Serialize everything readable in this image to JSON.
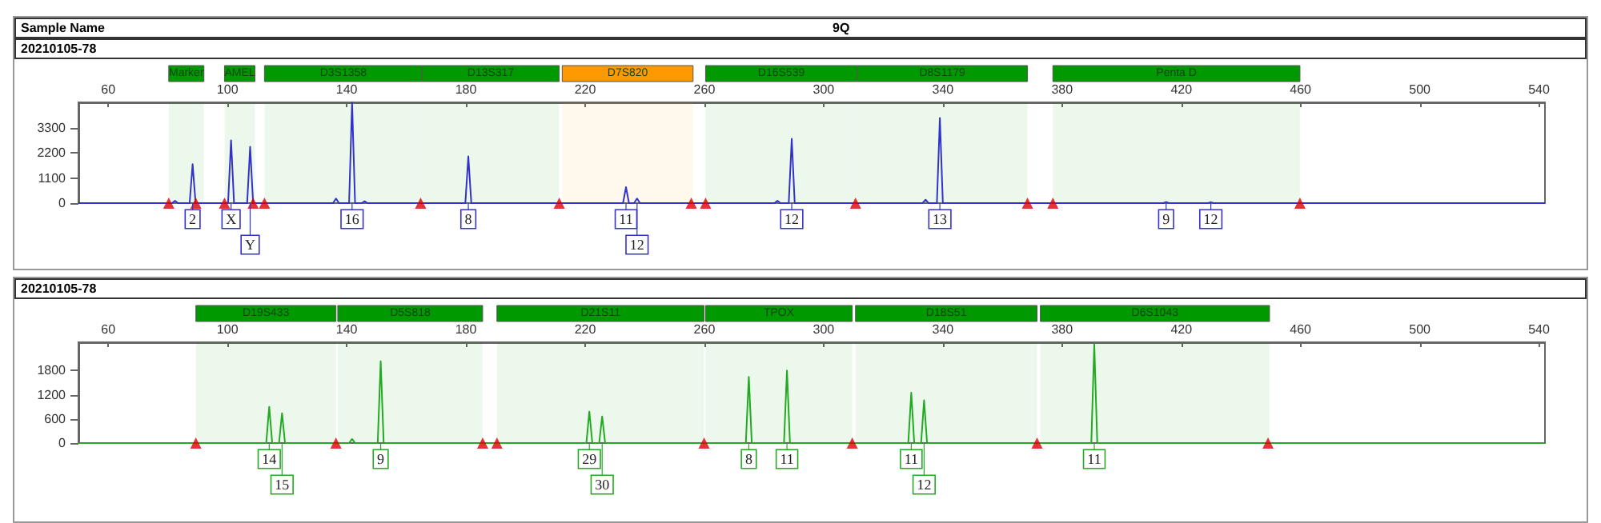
{
  "chart_data": [
    {
      "type": "line",
      "annotations": [
        "Sample Name",
        "9Q",
        "20210105-78",
        {
          "text": "2",
          "x": 88.3,
          "y": 0
        },
        {
          "text": "X",
          "x": 101.2,
          "y": 0
        },
        {
          "text": "Y",
          "x": 107.6,
          "y": 0
        },
        {
          "text": "16",
          "x": 141.8,
          "y": 0
        },
        {
          "text": "8",
          "x": 180.8,
          "y": 0
        },
        {
          "text": "11",
          "x": 233.7,
          "y": 0
        },
        {
          "text": "12",
          "x": 237.4,
          "y": 0
        },
        {
          "text": "12",
          "x": 289.3,
          "y": 0
        },
        {
          "text": "13",
          "x": 339,
          "y": 0
        },
        {
          "text": "9",
          "x": 414.9,
          "y": 0
        },
        {
          "text": "12",
          "x": 429.9,
          "y": 0
        }
      ],
      "x": [
        50,
        81.4,
        82.4,
        83.4,
        87.3,
        88.3,
        89.3,
        100.2,
        101.2,
        102.2,
        106.6,
        107.6,
        108.6,
        135.4,
        136.4,
        137.4,
        140.8,
        141.8,
        142.8,
        145,
        146,
        147,
        179.8,
        180.8,
        181.8,
        232.7,
        233.7,
        234.7,
        236.4,
        237.4,
        238.4,
        283.5,
        284.5,
        285.5,
        288.3,
        289.3,
        290.3,
        333.2,
        334.2,
        335.2,
        338,
        339,
        340,
        413.9,
        414.9,
        415.9,
        428.9,
        429.9,
        430.9,
        542
      ],
      "series": [
        {
          "color": "#3333cc",
          "marker": "none",
          "values": [
            0,
            0,
            100,
            0,
            0,
            1700,
            0,
            0,
            2740,
            0,
            0,
            2460,
            0,
            0,
            200,
            0,
            0,
            4400,
            0,
            0,
            80,
            0,
            0,
            2040,
            0,
            0,
            700,
            0,
            0,
            200,
            0,
            0,
            100,
            0,
            0,
            2810,
            0,
            0,
            150,
            0,
            0,
            3720,
            0,
            0,
            50,
            0,
            0,
            40,
            0,
            0
          ]
        },
        {
          "type": "scatter",
          "color": "#dd0000",
          "marker": "triangle",
          "x": [
            80.3,
            89.4,
            99,
            108.6,
            112.4,
            164.8,
            211.3,
            255.6,
            260.4,
            310.7,
            368.4,
            376.9,
            459.8
          ],
          "values": [
            0,
            0,
            0,
            0,
            0,
            0,
            0,
            0,
            0,
            0,
            0,
            0,
            0
          ]
        }
      ],
      "bands": [
        {
          "axis": "x",
          "from": 80.3,
          "to": 92.1,
          "label": "Marker",
          "color": "#009900"
        },
        {
          "axis": "x",
          "from": 99,
          "to": 109.2,
          "label": "AMEL",
          "color": "#009900"
        },
        {
          "axis": "x",
          "from": 112.4,
          "to": 165.3,
          "label": "D3S1358",
          "color": "#009900"
        },
        {
          "axis": "x",
          "from": 165.3,
          "to": 211.3,
          "label": "D13S317",
          "color": "#009900"
        },
        {
          "axis": "x",
          "from": 212.3,
          "to": 256.2,
          "label": "D7S820",
          "color": "#ff9900"
        },
        {
          "axis": "x",
          "from": 260.4,
          "to": 311.2,
          "label": "D16S539",
          "color": "#009900"
        },
        {
          "axis": "x",
          "from": 311.2,
          "to": 368.4,
          "label": "D8S1179",
          "color": "#009900"
        },
        {
          "axis": "x",
          "from": 376.9,
          "to": 459.8,
          "label": "Penta D",
          "color": "#009900"
        }
      ],
      "xlim": [
        50,
        542
      ],
      "xticks": [
        60,
        100,
        140,
        180,
        220,
        260,
        300,
        340,
        380,
        420,
        460,
        500,
        540
      ],
      "ylim": [
        0,
        4400
      ],
      "yticks": [
        0,
        1100,
        2200,
        3300
      ],
      "grid": false
    },
    {
      "type": "line",
      "annotations": [
        "20210105-78",
        {
          "text": "14",
          "x": 114,
          "y": 0
        },
        {
          "text": "15",
          "x": 118.3,
          "y": 0
        },
        {
          "text": "9",
          "x": 151.4,
          "y": 0
        },
        {
          "text": "29",
          "x": 221.4,
          "y": 0
        },
        {
          "text": "30",
          "x": 225.7,
          "y": 0
        },
        {
          "text": "8",
          "x": 274.9,
          "y": 0
        },
        {
          "text": "11",
          "x": 287.7,
          "y": 0
        },
        {
          "text": "11",
          "x": 329.4,
          "y": 0
        },
        {
          "text": "12",
          "x": 333.7,
          "y": 0
        },
        {
          "text": "11",
          "x": 390.8,
          "y": 0
        }
      ],
      "x": [
        50,
        113,
        114,
        115,
        117.3,
        118.3,
        119.3,
        140.8,
        141.8,
        142.8,
        150.4,
        151.4,
        152.4,
        220.4,
        221.4,
        222.4,
        224.7,
        225.7,
        226.7,
        273.9,
        274.9,
        275.9,
        286.7,
        287.7,
        288.7,
        328.4,
        329.4,
        330.4,
        332.7,
        333.7,
        334.7,
        389.8,
        390.8,
        391.8,
        542
      ],
      "series": [
        {
          "color": "#22aa22",
          "marker": "none",
          "values": [
            0,
            0,
            900,
            0,
            0,
            740,
            0,
            0,
            100,
            0,
            0,
            2030,
            0,
            0,
            780,
            0,
            0,
            660,
            0,
            0,
            1640,
            0,
            0,
            1800,
            0,
            0,
            1250,
            0,
            0,
            1060,
            0,
            0,
            2450,
            0,
            0
          ]
        },
        {
          "type": "scatter",
          "color": "#dd0000",
          "marker": "triangle",
          "x": [
            89.4,
            136.4,
            185.6,
            190.4,
            259.9,
            309.6,
            371.6,
            449.1
          ],
          "values": [
            0,
            0,
            0,
            0,
            0,
            0,
            0,
            0
          ]
        }
      ],
      "bands": [
        {
          "axis": "x",
          "from": 89.4,
          "to": 136.4,
          "label": "D19S433",
          "color": "#009900"
        },
        {
          "axis": "x",
          "from": 137,
          "to": 185.6,
          "label": "D5S818",
          "color": "#009900"
        },
        {
          "axis": "x",
          "from": 190.4,
          "to": 259.9,
          "label": "D21S11",
          "color": "#009900"
        },
        {
          "axis": "x",
          "from": 260.4,
          "to": 309.6,
          "label": "TPOX",
          "color": "#009900"
        },
        {
          "axis": "x",
          "from": 310.7,
          "to": 371.6,
          "label": "D18S51",
          "color": "#009900"
        },
        {
          "axis": "x",
          "from": 372.7,
          "to": 449.6,
          "label": "D6S1043",
          "color": "#009900"
        }
      ],
      "xlim": [
        50,
        542
      ],
      "xticks": [
        60,
        100,
        140,
        180,
        220,
        260,
        300,
        340,
        380,
        420,
        460,
        500,
        540
      ],
      "ylim": [
        0,
        2500
      ],
      "yticks": [
        0,
        600,
        1200,
        1800
      ],
      "grid": false
    }
  ]
}
